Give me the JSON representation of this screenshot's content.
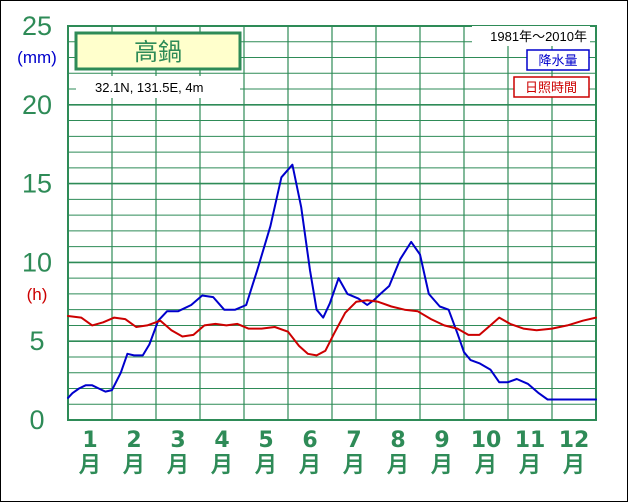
{
  "station": {
    "name": "高鍋",
    "location": "32.1N,  131.5E,  4m",
    "period": "1981年〜2010年"
  },
  "units": {
    "precip": "(mm)",
    "sunshine": "(h)"
  },
  "legend": {
    "precip": "降水量",
    "sunshine": "日照時間"
  },
  "colors": {
    "precip": "#0000cc",
    "sunshine": "#cc0000",
    "grid": "#2e8b57",
    "title_bg": "#ffffcc"
  },
  "chart_data": {
    "type": "line",
    "title": "高鍋",
    "xlabel": "",
    "ylabel": "",
    "ylim": [
      0,
      25
    ],
    "y_ticks": [
      "0",
      "5",
      "10",
      "15",
      "20",
      "25"
    ],
    "months": [
      "1",
      "2",
      "3",
      "4",
      "5",
      "6",
      "7",
      "8",
      "9",
      "10",
      "11",
      "12"
    ],
    "month_suffix": "月",
    "grid": true,
    "legend_position": "top-right",
    "series": [
      {
        "name": "降水量",
        "unit": "mm",
        "x": [
          0.0,
          0.1,
          0.25,
          0.4,
          0.55,
          0.7,
          0.85,
          1.0,
          1.2,
          1.35,
          1.5,
          1.7,
          1.85,
          2.05,
          2.25,
          2.5,
          2.8,
          3.05,
          3.3,
          3.55,
          3.8,
          4.05,
          4.3,
          4.6,
          4.85,
          5.1,
          5.3,
          5.5,
          5.65,
          5.8,
          5.95,
          6.15,
          6.35,
          6.6,
          6.8,
          6.95,
          7.1,
          7.3,
          7.55,
          7.8,
          8.0,
          8.2,
          8.45,
          8.65,
          8.85,
          9.0,
          9.15,
          9.35,
          9.6,
          9.8,
          10.0,
          10.2,
          10.45,
          10.7,
          10.9,
          11.1,
          11.3,
          11.5,
          11.7,
          11.85,
          12.0
        ],
        "values": [
          1.4,
          1.7,
          2.0,
          2.2,
          2.2,
          2.0,
          1.8,
          1.9,
          3.0,
          4.2,
          4.1,
          4.1,
          4.8,
          6.3,
          6.9,
          6.9,
          7.3,
          7.9,
          7.8,
          7.0,
          7.0,
          7.3,
          9.5,
          12.3,
          15.4,
          16.2,
          13.5,
          9.5,
          7.0,
          6.5,
          7.4,
          9.0,
          8.0,
          7.7,
          7.3,
          7.6,
          8.0,
          8.5,
          10.2,
          11.3,
          10.5,
          8.0,
          7.2,
          7.0,
          5.5,
          4.3,
          3.8,
          3.6,
          3.2,
          2.4,
          2.4,
          2.6,
          2.3,
          1.7,
          1.3,
          1.3,
          1.3,
          1.3,
          1.3,
          1.3,
          1.3
        ],
        "color": "#0000cc"
      },
      {
        "name": "日照時間",
        "unit": "h",
        "x": [
          0.0,
          0.3,
          0.55,
          0.8,
          1.05,
          1.3,
          1.55,
          1.8,
          2.1,
          2.35,
          2.6,
          2.85,
          3.1,
          3.35,
          3.6,
          3.85,
          4.1,
          4.4,
          4.7,
          5.0,
          5.25,
          5.45,
          5.65,
          5.85,
          6.05,
          6.3,
          6.55,
          6.8,
          7.05,
          7.35,
          7.65,
          7.95,
          8.25,
          8.55,
          8.85,
          9.1,
          9.35,
          9.6,
          9.8,
          10.05,
          10.35,
          10.65,
          11.0,
          11.35,
          11.7,
          12.0
        ],
        "values": [
          6.6,
          6.5,
          6.0,
          6.2,
          6.5,
          6.4,
          5.9,
          6.0,
          6.3,
          5.7,
          5.3,
          5.4,
          6.0,
          6.1,
          6.0,
          6.1,
          5.8,
          5.8,
          5.9,
          5.6,
          4.7,
          4.2,
          4.1,
          4.4,
          5.5,
          6.8,
          7.5,
          7.6,
          7.5,
          7.2,
          7.0,
          6.9,
          6.4,
          6.0,
          5.8,
          5.4,
          5.4,
          6.0,
          6.5,
          6.1,
          5.8,
          5.7,
          5.8,
          6.0,
          6.3,
          6.5
        ]
      }
    ]
  }
}
